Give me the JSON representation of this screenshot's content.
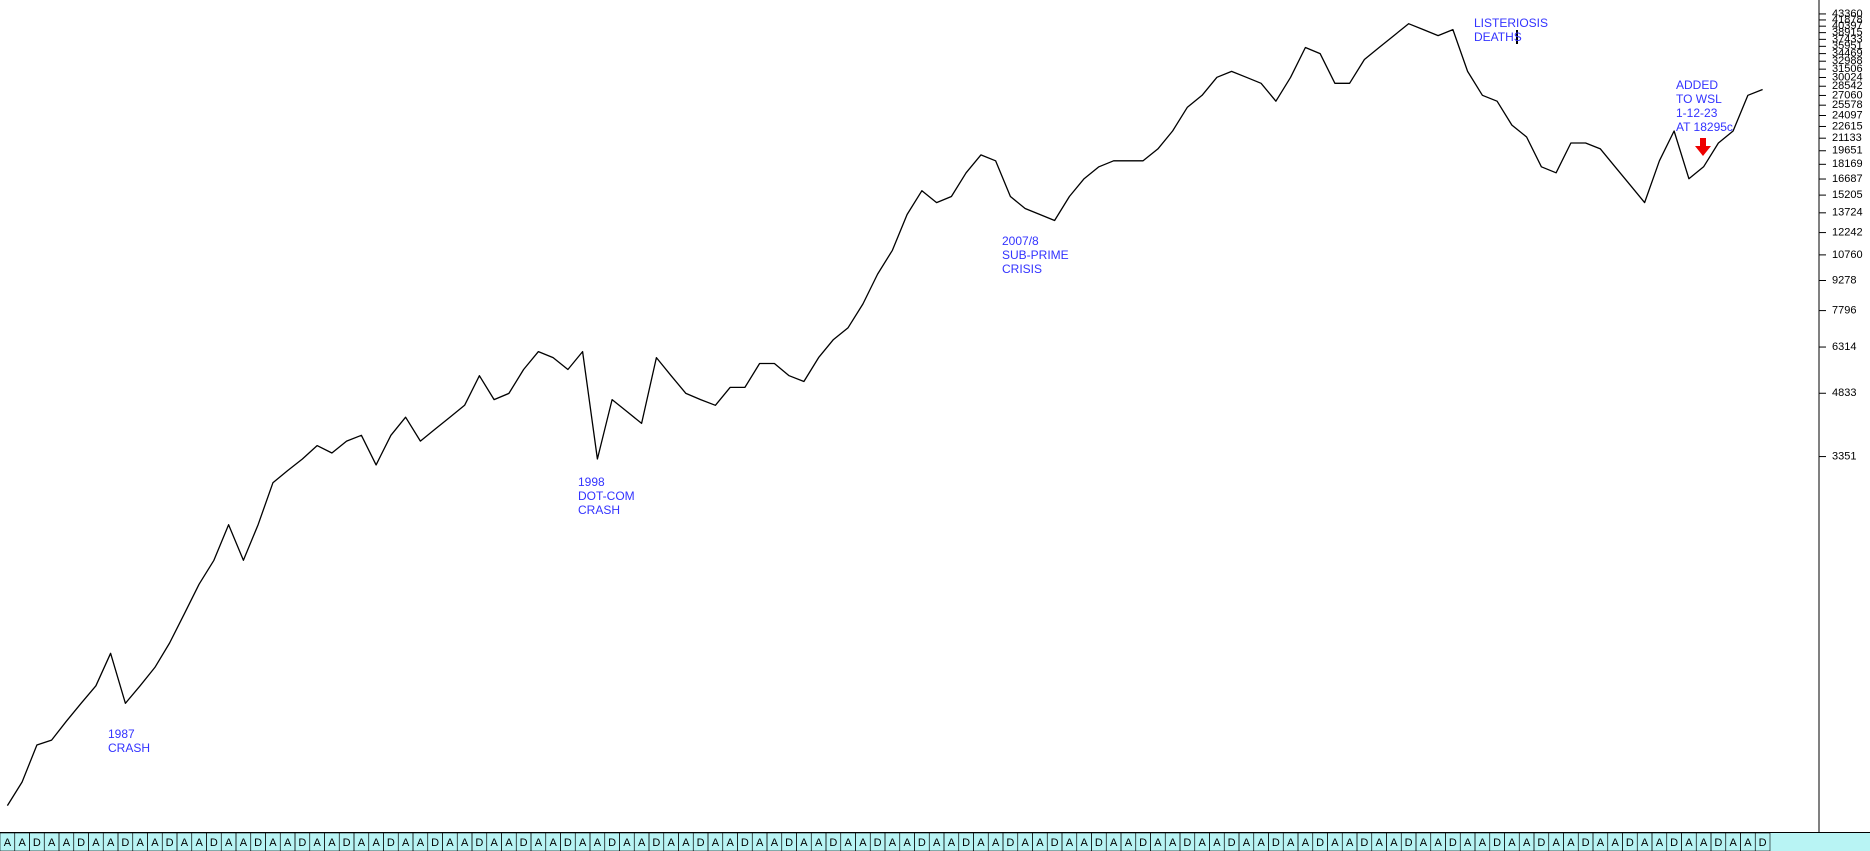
{
  "chart_data": {
    "type": "line",
    "log_scale": true,
    "color": "#000000",
    "categories": [
      "A",
      "A",
      "D",
      "A",
      "A",
      "D",
      "A",
      "A",
      "D",
      "A",
      "A",
      "D",
      "A",
      "A",
      "D",
      "A",
      "A",
      "D",
      "A",
      "A",
      "D",
      "A",
      "A",
      "D",
      "A",
      "A",
      "D",
      "A",
      "A",
      "D",
      "A",
      "A",
      "D",
      "A",
      "A",
      "D",
      "A",
      "A",
      "D",
      "A",
      "A",
      "D",
      "A",
      "A",
      "D",
      "A",
      "A",
      "D",
      "A",
      "A",
      "D",
      "A",
      "A",
      "D",
      "A",
      "A",
      "D",
      "A",
      "A",
      "D",
      "A",
      "A",
      "D",
      "A",
      "A",
      "D",
      "A",
      "A",
      "D",
      "A",
      "A",
      "D",
      "A",
      "A",
      "D",
      "A",
      "A",
      "D",
      "A",
      "A",
      "D",
      "A",
      "A",
      "D",
      "A",
      "A",
      "D",
      "A",
      "A",
      "D",
      "A",
      "A",
      "D",
      "A",
      "A",
      "D",
      "A",
      "A",
      "D",
      "A",
      "A",
      "D",
      "A",
      "A",
      "D",
      "A",
      "A",
      "D",
      "A",
      "A",
      "D",
      "A",
      "A",
      "D",
      "A",
      "A",
      "D",
      "A",
      "A",
      "D"
    ],
    "values": [
      445,
      510,
      632,
      650,
      725,
      804,
      890,
      1074,
      804,
      890,
      990,
      1140,
      1350,
      1602,
      1839,
      2260,
      1839,
      2260,
      2880,
      3090,
      3305,
      3570,
      3421,
      3665,
      3790,
      3193,
      3790,
      4207,
      3665,
      3927,
      4207,
      4507,
      5350,
      4660,
      4829,
      5544,
      6150,
      5940,
      5544,
      6150,
      3305,
      4660,
      4350,
      4060,
      5940,
      5350,
      4829,
      4660,
      4507,
      5000,
      5000,
      5740,
      5740,
      5350,
      5174,
      5940,
      6590,
      7060,
      8100,
      9627,
      11051,
      13590,
      15601,
      14561,
      15080,
      17300,
      19187,
      18540,
      15080,
      14070,
      13590,
      13130,
      15080,
      16715,
      17908,
      18540,
      18540,
      18540,
      19860,
      22026,
      25285,
      27090,
      30050,
      31100,
      30050,
      29026,
      26170,
      30050,
      35700,
      34480,
      29026,
      29026,
      33320,
      35700,
      38250,
      40980,
      39600,
      38250,
      39600,
      31100,
      27090,
      26170,
      22800,
      21280,
      17908,
      17300,
      20558,
      20558,
      19860,
      17908,
      16150,
      14561,
      18540,
      22026,
      16715,
      17908,
      20558,
      22026,
      27090,
      28000
    ],
    "ylim": [
      382,
      47000
    ],
    "yticks": [
      3351,
      4833,
      6314,
      7796,
      9278,
      10760,
      12242,
      13724,
      15205,
      16687,
      18169,
      19651,
      21133,
      22615,
      24097,
      25578,
      27060,
      28542,
      30024,
      31506,
      32988,
      34469,
      35951,
      37433,
      38915,
      40397,
      41878,
      43360
    ],
    "annotations": [
      {
        "lines": [
          "1987",
          "CRASH"
        ]
      },
      {
        "lines": [
          "1998",
          "DOT-COM",
          "CRASH"
        ]
      },
      {
        "lines": [
          "2007/8",
          "SUB-PRIME",
          "CRISIS"
        ]
      },
      {
        "lines": [
          "LISTERIOSIS",
          "DEATHS"
        ]
      },
      {
        "lines": [
          "ADDED",
          "TO WSL",
          "1-12-23",
          "AT 18295c"
        ]
      }
    ]
  }
}
